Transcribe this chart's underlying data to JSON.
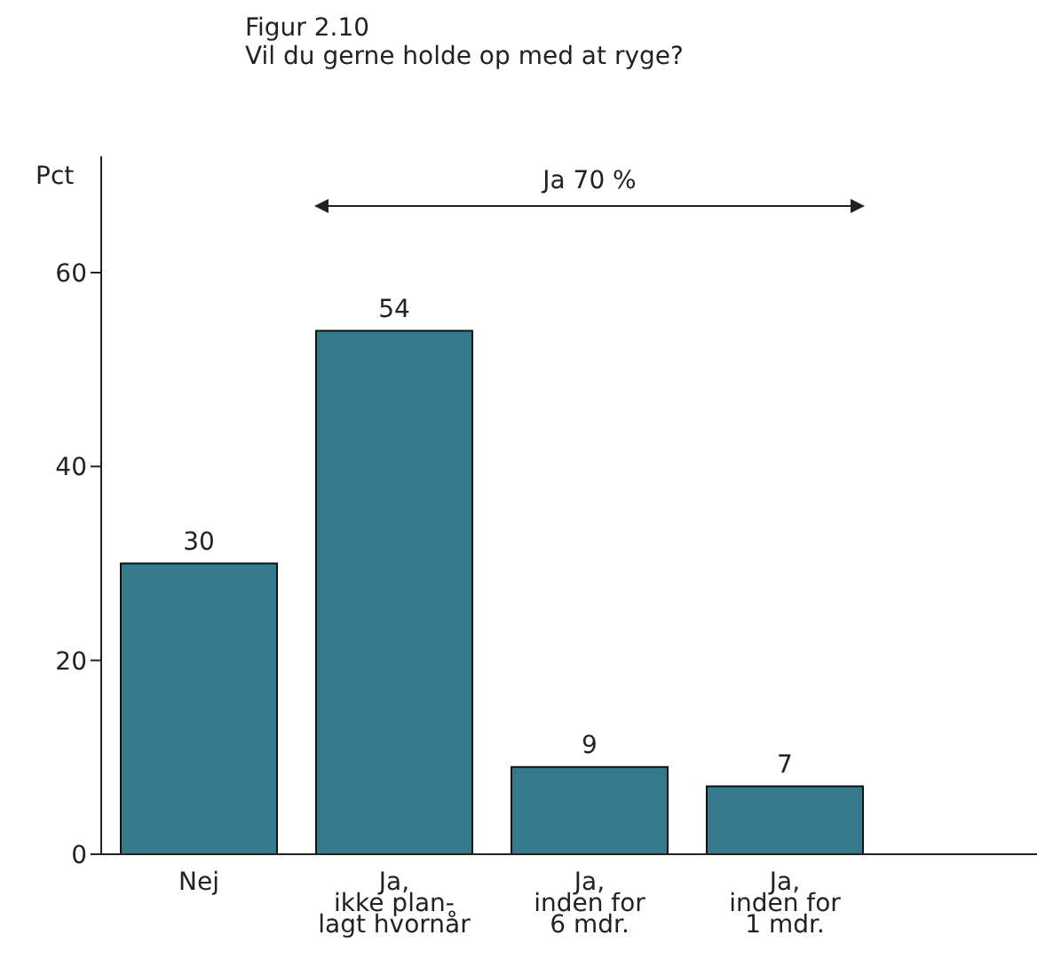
{
  "chart_data": {
    "type": "bar",
    "title": "Figur 2.10",
    "subtitle": "Vil du gerne holde op med at ryge?",
    "ylabel": "Pct",
    "categories": [
      "Nej",
      "Ja,\nikke plan-\nlagt hvornår",
      "Ja,\ninden for\n6 mdr.",
      "Ja,\ninden for\n1 mdr."
    ],
    "values": [
      30,
      54,
      9,
      7
    ],
    "color": "#347a8c",
    "data_labels": true,
    "grid": false,
    "ylim": [
      0,
      72
    ],
    "yticks": [
      0,
      20,
      40,
      60
    ],
    "annotations": [
      "Ja 70 %"
    ]
  }
}
